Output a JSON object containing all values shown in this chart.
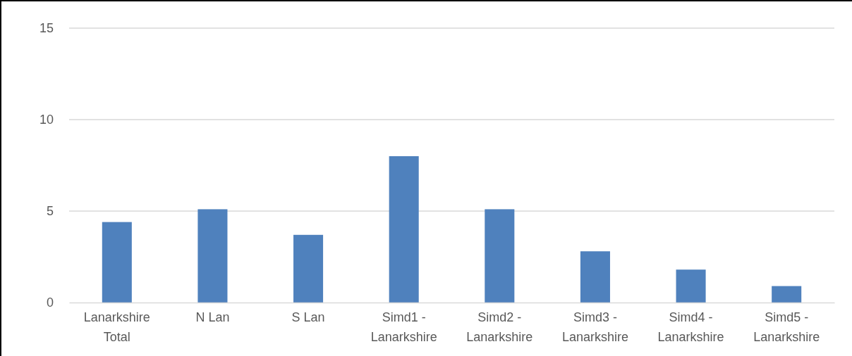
{
  "chart_data": {
    "type": "bar",
    "categories": [
      "Lanarkshire Total",
      "N Lan",
      "S Lan",
      "Simd1 - Lanarkshire",
      "Simd2 - Lanarkshire",
      "Simd3 - Lanarkshire",
      "Simd4 - Lanarkshire",
      "Simd5 - Lanarkshire"
    ],
    "values": [
      4.4,
      5.1,
      3.7,
      8.0,
      5.1,
      2.8,
      1.8,
      0.9
    ],
    "color": "#4f81bd",
    "ylim": [
      0,
      15
    ],
    "yticks": [
      0,
      5,
      10,
      15
    ],
    "grid": "y"
  }
}
